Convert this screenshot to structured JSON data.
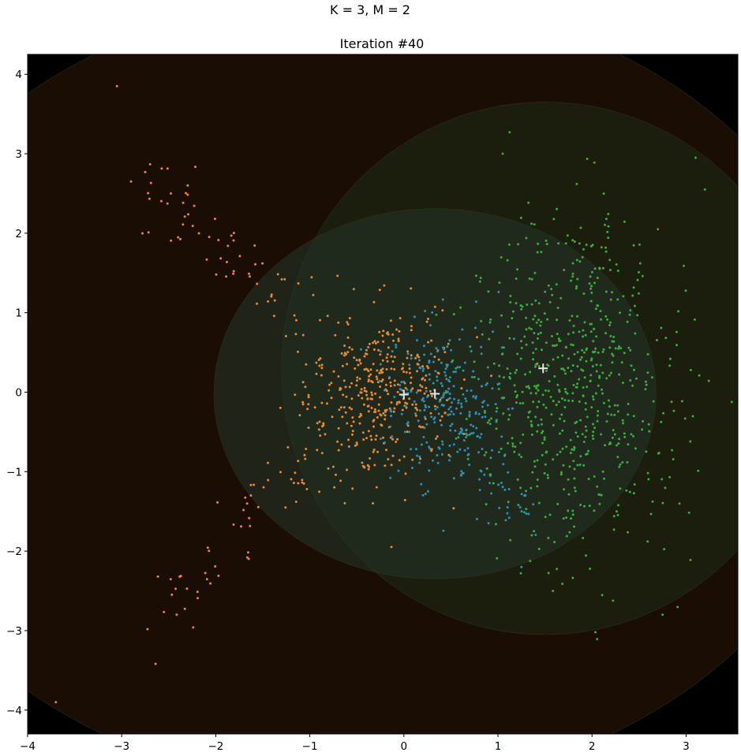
{
  "figure": {
    "suptitle": "K = 3, M = 2",
    "axes_title": "Iteration #40"
  },
  "chart_data": {
    "type": "scatter",
    "title": "Iteration #40",
    "suptitle": "K = 3, M = 2",
    "xlabel": "",
    "ylabel": "",
    "xlim": [
      -4.0,
      3.55
    ],
    "ylim": [
      -4.3,
      4.25
    ],
    "x_ticks": [
      -4,
      -3,
      -2,
      -1,
      0,
      1,
      2,
      3
    ],
    "y_ticks": [
      -4,
      -3,
      -2,
      -1,
      0,
      1,
      2,
      3,
      4
    ],
    "x_tick_labels": [
      "−4",
      "−3",
      "−2",
      "−1",
      "0",
      "1",
      "2",
      "3"
    ],
    "y_tick_labels": [
      "−4",
      "−3",
      "−2",
      "−1",
      "0",
      "1",
      "2",
      "3",
      "4"
    ],
    "grid": false,
    "background_color": "#000000",
    "centroid_marker": "plus",
    "centroid_color": "#e8e8e8",
    "regions": [
      {
        "center": [
          -0.5,
          0.0
        ],
        "semi_axes": [
          5.3,
          5.0
        ],
        "fill": "#1a0e04",
        "opacity": 1.0
      },
      {
        "center": [
          1.5,
          0.3
        ],
        "semi_axes": [
          2.8,
          3.35
        ],
        "fill": "#1c2a12",
        "opacity": 0.6
      },
      {
        "center": [
          0.33,
          -0.02
        ],
        "semi_axes": [
          2.35,
          2.33
        ],
        "fill": "#24342a",
        "opacity": 0.55
      }
    ],
    "series": [
      {
        "color": "#e8892a",
        "centroid": [
          0.0,
          -0.03
        ],
        "core": {
          "center": [
            -0.25,
            -0.05
          ],
          "spread": [
            0.42,
            0.55
          ],
          "count": 380
        },
        "arms": [
          {
            "from": [
              -0.8,
              0.6
            ],
            "to": [
              -2.7,
              2.7
            ],
            "count": 70,
            "jitter": 0.17
          },
          {
            "from": [
              -0.8,
              -0.6
            ],
            "to": [
              -2.6,
              -2.8
            ],
            "count": 55,
            "jitter": 0.18
          }
        ],
        "outliers": [
          [
            -3.05,
            3.85
          ],
          [
            -3.7,
            -3.9
          ],
          [
            -2.9,
            2.65
          ],
          [
            -2.75,
            2.77
          ]
        ]
      },
      {
        "color": "#2e8fb5",
        "centroid": [
          0.33,
          -0.02
        ],
        "core": {
          "center": [
            0.45,
            -0.1
          ],
          "spread": [
            0.32,
            0.55
          ],
          "count": 260
        },
        "arms": [
          {
            "from": [
              0.5,
              -0.3
            ],
            "to": [
              1.3,
              -1.6
            ],
            "count": 45,
            "jitter": 0.14
          }
        ],
        "outliers": [
          [
            1.25,
            -2.2
          ],
          [
            0.9,
            -1.65
          ]
        ]
      },
      {
        "color": "#3bab3b",
        "centroid": [
          1.48,
          0.3
        ],
        "core": {
          "center": [
            1.75,
            0.05
          ],
          "spread": [
            0.55,
            1.05
          ],
          "count": 640
        },
        "arms": [],
        "outliers": [
          [
            1.05,
            3.0
          ],
          [
            3.1,
            2.95
          ],
          [
            3.2,
            2.55
          ],
          [
            2.75,
            -2.8
          ],
          [
            2.85,
            -0.73
          ],
          [
            2.7,
            2.05
          ]
        ]
      }
    ]
  }
}
